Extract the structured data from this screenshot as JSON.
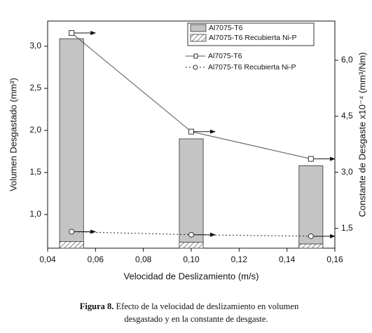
{
  "chart_data": {
    "type": "bar",
    "x": [
      0.05,
      0.1,
      0.15
    ],
    "xlim": [
      0.04,
      0.16
    ],
    "xticks": [
      {
        "value": 0.04,
        "label": "0,04"
      },
      {
        "value": 0.06,
        "label": "0,06"
      },
      {
        "value": 0.08,
        "label": "0,08"
      },
      {
        "value": 0.1,
        "label": "0,10"
      },
      {
        "value": 0.12,
        "label": "0,12"
      },
      {
        "value": 0.14,
        "label": "0,14"
      },
      {
        "value": 0.16,
        "label": "0,16"
      }
    ],
    "ylim": [
      0.6,
      3.3
    ],
    "yticks": [
      {
        "value": 1.0,
        "label": "1,0"
      },
      {
        "value": 1.5,
        "label": "1,5"
      },
      {
        "value": 2.0,
        "label": "2,0"
      },
      {
        "value": 2.5,
        "label": "2,5"
      },
      {
        "value": 3.0,
        "label": "3,0"
      }
    ],
    "y2lim": [
      0.97,
      7.05
    ],
    "y2ticks": [
      {
        "value": 1.5,
        "label": "1,5"
      },
      {
        "value": 3.0,
        "label": "3,0"
      },
      {
        "value": 4.5,
        "label": "4,5"
      },
      {
        "value": 6.0,
        "label": "6,0"
      }
    ],
    "xlabel": "Velocidad de Deslizamiento (m/s)",
    "ylabel": "Volumen Desgastado (mm³)",
    "y2label": "Constante de Desgaste x10⁻⁴ (mm³/Nm)",
    "bar_width": 0.01,
    "series": [
      {
        "name": "Al7075-T6",
        "type": "bar",
        "color": "#c4c4c4",
        "values": [
          3.09,
          1.9,
          1.58
        ]
      },
      {
        "name": "Al7075-T6 Recubierta Ni-P",
        "type": "bar",
        "color": "#ffffff",
        "pattern": "hatch",
        "values": [
          0.68,
          0.67,
          0.65
        ]
      },
      {
        "name": "Al7075-T6",
        "type": "line",
        "axis": "y2",
        "color": "#555555",
        "marker": "square",
        "dash": false,
        "values": [
          6.73,
          4.09,
          3.36
        ]
      },
      {
        "name": "Al7075-T6 Recubierta Ni-P",
        "type": "line",
        "axis": "y2",
        "color": "#222222",
        "marker": "circle",
        "dash": true,
        "values": [
          1.41,
          1.33,
          1.29
        ]
      }
    ],
    "caption_label": "Figura 8.",
    "caption": [
      "Efecto de la velocidad de deslizamiento en volumen",
      "desgastado y en la constante de desgaste."
    ]
  }
}
